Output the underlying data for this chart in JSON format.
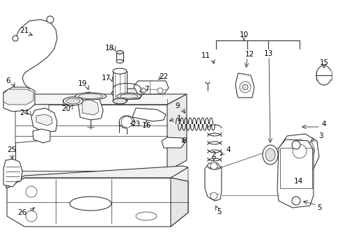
{
  "bg_color": "#ffffff",
  "line_color": "#2a2a2a",
  "fig_width": 4.89,
  "fig_height": 3.6,
  "dpi": 100,
  "font_size": 7.5,
  "lw": 0.75
}
